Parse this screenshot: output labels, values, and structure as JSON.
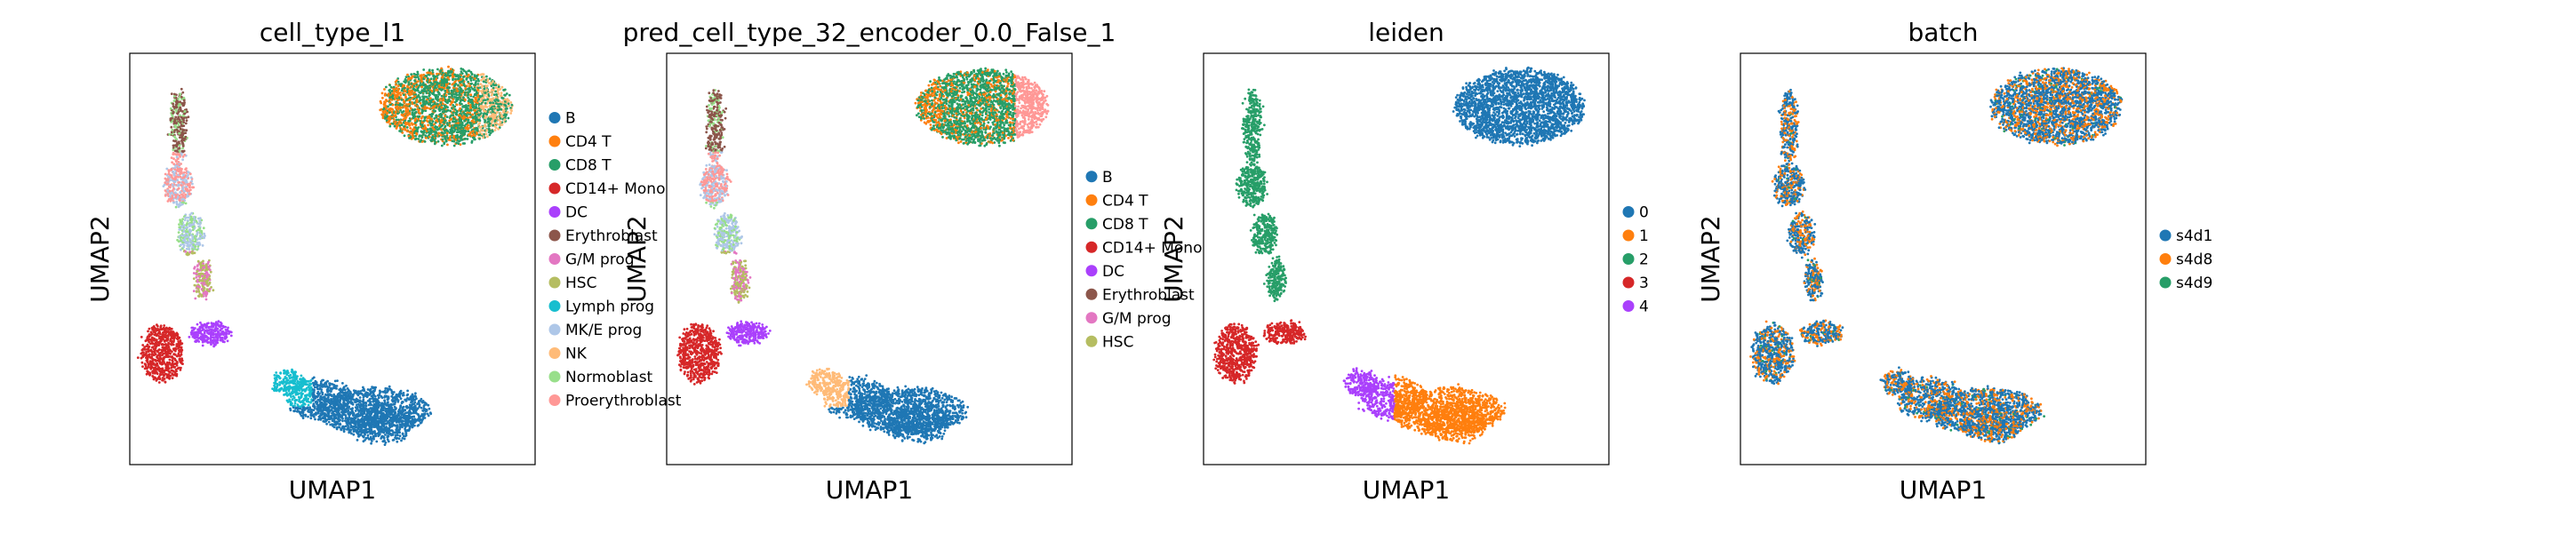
{
  "chart_data": [
    {
      "type": "scatter",
      "title": "cell_type_l1",
      "xlabel": "UMAP1",
      "ylabel": "UMAP2",
      "ticks": false,
      "legend_position": "right",
      "legend": [
        {
          "label": "B",
          "color": "#1f77b4"
        },
        {
          "label": "CD4 T",
          "color": "#ff7f0e"
        },
        {
          "label": "CD8 T",
          "color": "#279e68"
        },
        {
          "label": "CD14+ Mono",
          "color": "#d62728"
        },
        {
          "label": "DC",
          "color": "#aa40fc"
        },
        {
          "label": "Erythroblast",
          "color": "#8c564b"
        },
        {
          "label": "G/M prog",
          "color": "#e377c2"
        },
        {
          "label": "HSC",
          "color": "#b5bd61"
        },
        {
          "label": "Lymph prog",
          "color": "#17becf"
        },
        {
          "label": "MK/E prog",
          "color": "#aec7e8"
        },
        {
          "label": "NK",
          "color": "#ffbb78"
        },
        {
          "label": "Normoblast",
          "color": "#98df8a"
        },
        {
          "label": "Proerythroblast",
          "color": "#ff9896"
        }
      ]
    },
    {
      "type": "scatter",
      "title": "pred_cell_type_32_encoder_0.0_False_1",
      "xlabel": "UMAP1",
      "ylabel": "UMAP2",
      "ticks": false,
      "legend_position": "right",
      "legend": [
        {
          "label": "B",
          "color": "#1f77b4"
        },
        {
          "label": "CD4 T",
          "color": "#ff7f0e"
        },
        {
          "label": "CD8 T",
          "color": "#279e68"
        },
        {
          "label": "CD14+ Mono",
          "color": "#d62728"
        },
        {
          "label": "DC",
          "color": "#aa40fc"
        },
        {
          "label": "Erythroblast",
          "color": "#8c564b"
        },
        {
          "label": "G/M prog",
          "color": "#e377c2"
        },
        {
          "label": "HSC",
          "color": "#b5bd61"
        }
      ]
    },
    {
      "type": "scatter",
      "title": "leiden",
      "xlabel": "UMAP1",
      "ylabel": "UMAP2",
      "ticks": false,
      "legend_position": "right",
      "legend": [
        {
          "label": "0",
          "color": "#1f77b4"
        },
        {
          "label": "1",
          "color": "#ff7f0e"
        },
        {
          "label": "2",
          "color": "#279e68"
        },
        {
          "label": "3",
          "color": "#d62728"
        },
        {
          "label": "4",
          "color": "#aa40fc"
        }
      ]
    },
    {
      "type": "scatter",
      "title": "batch",
      "xlabel": "UMAP1",
      "ylabel": "UMAP2",
      "ticks": false,
      "legend_position": "right",
      "legend": [
        {
          "label": "s4d1",
          "color": "#1f77b4"
        },
        {
          "label": "s4d8",
          "color": "#ff7f0e"
        },
        {
          "label": "s4d9",
          "color": "#279e68"
        }
      ]
    }
  ]
}
